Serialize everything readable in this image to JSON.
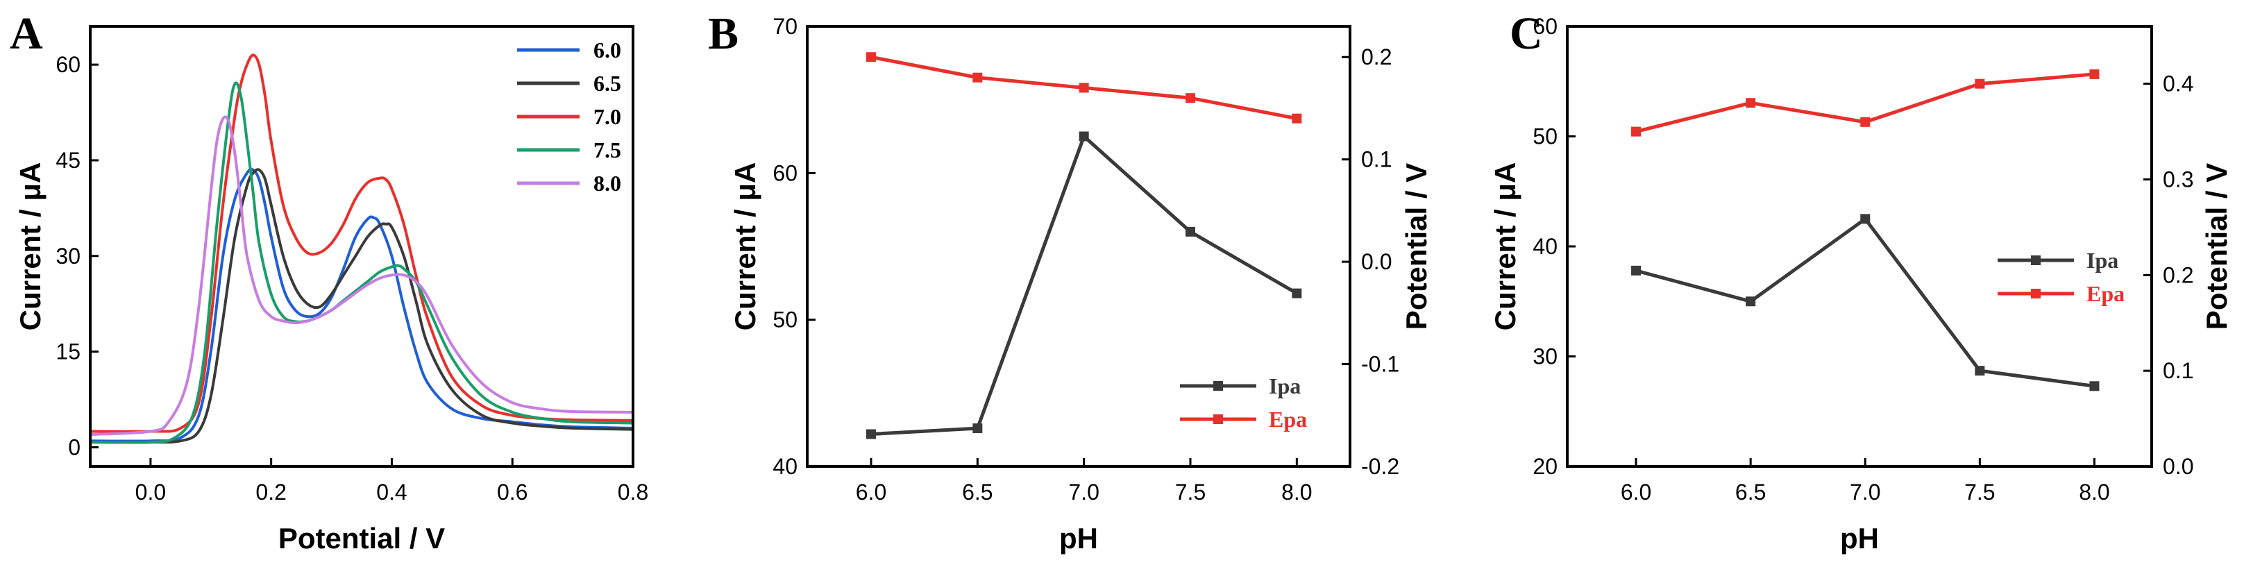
{
  "chart_data": [
    {
      "panel": "A",
      "type": "line",
      "xlabel": "Potential / V",
      "ylabel": "Current / μA",
      "xlim": [
        -0.1,
        0.8
      ],
      "ylim": [
        -3,
        66
      ],
      "xticks": [
        "0.0",
        "0.2",
        "0.4",
        "0.6",
        "0.8"
      ],
      "yticks": [
        "0",
        "15",
        "30",
        "45",
        "60"
      ],
      "legend_position": "top-right",
      "series": [
        {
          "name": "6.0",
          "color": "#1f5fd6",
          "x": [
            -0.1,
            0.0,
            0.05,
            0.08,
            0.1,
            0.12,
            0.14,
            0.16,
            0.17,
            0.18,
            0.19,
            0.2,
            0.22,
            0.24,
            0.26,
            0.28,
            0.3,
            0.32,
            0.34,
            0.36,
            0.37,
            0.38,
            0.4,
            0.42,
            0.44,
            0.46,
            0.5,
            0.55,
            0.6,
            0.65,
            0.7,
            0.8
          ],
          "y": [
            1.0,
            1.0,
            1.5,
            5.0,
            15.0,
            30.0,
            39.0,
            43.0,
            43.5,
            42.0,
            38.0,
            33.0,
            25.0,
            21.5,
            20.5,
            21.0,
            23.5,
            28.0,
            33.0,
            35.8,
            36.0,
            35.0,
            30.0,
            22.0,
            15.0,
            10.0,
            6.0,
            4.5,
            4.0,
            3.5,
            3.2,
            3.0
          ]
        },
        {
          "name": "6.5",
          "color": "#3a3a3a",
          "x": [
            -0.1,
            0.0,
            0.05,
            0.08,
            0.1,
            0.12,
            0.14,
            0.16,
            0.17,
            0.18,
            0.19,
            0.2,
            0.22,
            0.24,
            0.26,
            0.28,
            0.3,
            0.32,
            0.34,
            0.36,
            0.38,
            0.39,
            0.4,
            0.42,
            0.44,
            0.46,
            0.5,
            0.55,
            0.6,
            0.65,
            0.7,
            0.8
          ],
          "y": [
            0.8,
            0.8,
            1.0,
            2.5,
            8.0,
            20.0,
            33.0,
            41.0,
            43.0,
            43.5,
            42.0,
            38.0,
            30.0,
            25.0,
            22.5,
            22.0,
            24.0,
            27.0,
            30.0,
            33.0,
            34.8,
            35.0,
            34.5,
            30.0,
            23.0,
            16.0,
            9.0,
            5.0,
            3.8,
            3.3,
            3.0,
            2.8
          ]
        },
        {
          "name": "7.0",
          "color": "#e8302b",
          "x": [
            -0.1,
            0.0,
            0.05,
            0.08,
            0.1,
            0.12,
            0.14,
            0.15,
            0.16,
            0.17,
            0.18,
            0.19,
            0.2,
            0.22,
            0.24,
            0.26,
            0.28,
            0.3,
            0.32,
            0.34,
            0.36,
            0.38,
            0.39,
            0.4,
            0.42,
            0.44,
            0.46,
            0.5,
            0.55,
            0.6,
            0.65,
            0.7,
            0.8
          ],
          "y": [
            2.5,
            2.5,
            3.0,
            7.0,
            20.0,
            38.0,
            52.0,
            57.0,
            60.0,
            61.5,
            60.0,
            55.0,
            48.0,
            38.0,
            33.0,
            30.5,
            30.5,
            32.0,
            35.0,
            39.0,
            41.5,
            42.2,
            42.0,
            40.5,
            35.0,
            27.0,
            20.0,
            11.0,
            6.5,
            5.0,
            4.5,
            4.3,
            4.2
          ]
        },
        {
          "name": "7.5",
          "color": "#1a9e6a",
          "x": [
            -0.1,
            0.0,
            0.04,
            0.07,
            0.09,
            0.11,
            0.13,
            0.14,
            0.15,
            0.16,
            0.17,
            0.18,
            0.2,
            0.22,
            0.24,
            0.26,
            0.28,
            0.3,
            0.32,
            0.34,
            0.36,
            0.38,
            0.4,
            0.41,
            0.42,
            0.44,
            0.46,
            0.5,
            0.55,
            0.6,
            0.65,
            0.7,
            0.8
          ],
          "y": [
            0.8,
            0.8,
            1.5,
            5.0,
            15.0,
            35.0,
            52.0,
            57.0,
            55.0,
            48.0,
            40.0,
            32.0,
            24.0,
            20.5,
            19.7,
            19.8,
            20.5,
            21.5,
            23.0,
            24.5,
            26.0,
            27.5,
            28.3,
            28.5,
            28.0,
            26.0,
            22.0,
            14.0,
            8.0,
            5.5,
            4.5,
            4.0,
            3.8
          ]
        },
        {
          "name": "8.0",
          "color": "#c77ee0",
          "x": [
            -0.1,
            0.0,
            0.03,
            0.06,
            0.08,
            0.1,
            0.11,
            0.12,
            0.13,
            0.14,
            0.15,
            0.16,
            0.18,
            0.2,
            0.22,
            0.24,
            0.26,
            0.28,
            0.3,
            0.32,
            0.34,
            0.36,
            0.38,
            0.4,
            0.42,
            0.44,
            0.46,
            0.5,
            0.55,
            0.6,
            0.65,
            0.7,
            0.8
          ],
          "y": [
            2.0,
            2.5,
            4.0,
            10.0,
            22.0,
            40.0,
            48.0,
            51.5,
            51.0,
            46.0,
            38.0,
            30.0,
            23.0,
            20.5,
            19.8,
            19.5,
            19.8,
            20.5,
            21.5,
            22.8,
            24.2,
            25.5,
            26.5,
            27.0,
            27.0,
            26.0,
            23.5,
            16.0,
            10.0,
            7.0,
            6.0,
            5.6,
            5.5
          ]
        }
      ]
    },
    {
      "panel": "B",
      "type": "line",
      "xlabel": "pH",
      "ylabel": "Current / μA",
      "ylabel_right": "Potential / V",
      "xlim": [
        5.7,
        8.25
      ],
      "ylim": [
        40,
        70
      ],
      "ylim_right": [
        -0.2,
        0.23
      ],
      "xticks": [
        "6.0",
        "6.5",
        "7.0",
        "7.5",
        "8.0"
      ],
      "yticks": [
        "40",
        "50",
        "60",
        "70"
      ],
      "yticks_right": [
        "-0.2",
        "-0.1",
        "0.0",
        "0.1",
        "0.2"
      ],
      "legend_position": "bottom-right",
      "series": [
        {
          "name": "Ipa",
          "axis": "left",
          "color": "#3a3a3a",
          "x": [
            6.0,
            6.5,
            7.0,
            7.5,
            8.0
          ],
          "y": [
            42.2,
            42.6,
            62.5,
            56.0,
            51.8
          ]
        },
        {
          "name": "Epa",
          "axis": "right",
          "color": "#e8302b",
          "x": [
            6.0,
            6.5,
            7.0,
            7.5,
            8.0
          ],
          "y": [
            0.2,
            0.18,
            0.17,
            0.16,
            0.14
          ]
        }
      ]
    },
    {
      "panel": "C",
      "type": "line",
      "xlabel": "pH",
      "ylabel": "Current / μA",
      "ylabel_right": "Potential / V",
      "xlim": [
        5.7,
        8.25
      ],
      "ylim": [
        20,
        60
      ],
      "ylim_right": [
        0.0,
        0.46
      ],
      "xticks": [
        "6.0",
        "6.5",
        "7.0",
        "7.5",
        "8.0"
      ],
      "yticks": [
        "20",
        "30",
        "40",
        "50",
        "60"
      ],
      "yticks_right": [
        "0.0",
        "0.1",
        "0.2",
        "0.3",
        "0.4"
      ],
      "legend_position": "right",
      "series": [
        {
          "name": "Ipa",
          "axis": "left",
          "color": "#3a3a3a",
          "x": [
            6.0,
            6.5,
            7.0,
            7.5,
            8.0
          ],
          "y": [
            37.8,
            35.0,
            42.5,
            28.7,
            27.3
          ]
        },
        {
          "name": "Epa",
          "axis": "right",
          "color": "#e8302b",
          "x": [
            6.0,
            6.5,
            7.0,
            7.5,
            8.0
          ],
          "y": [
            0.35,
            0.38,
            0.36,
            0.4,
            0.41
          ]
        }
      ]
    }
  ]
}
